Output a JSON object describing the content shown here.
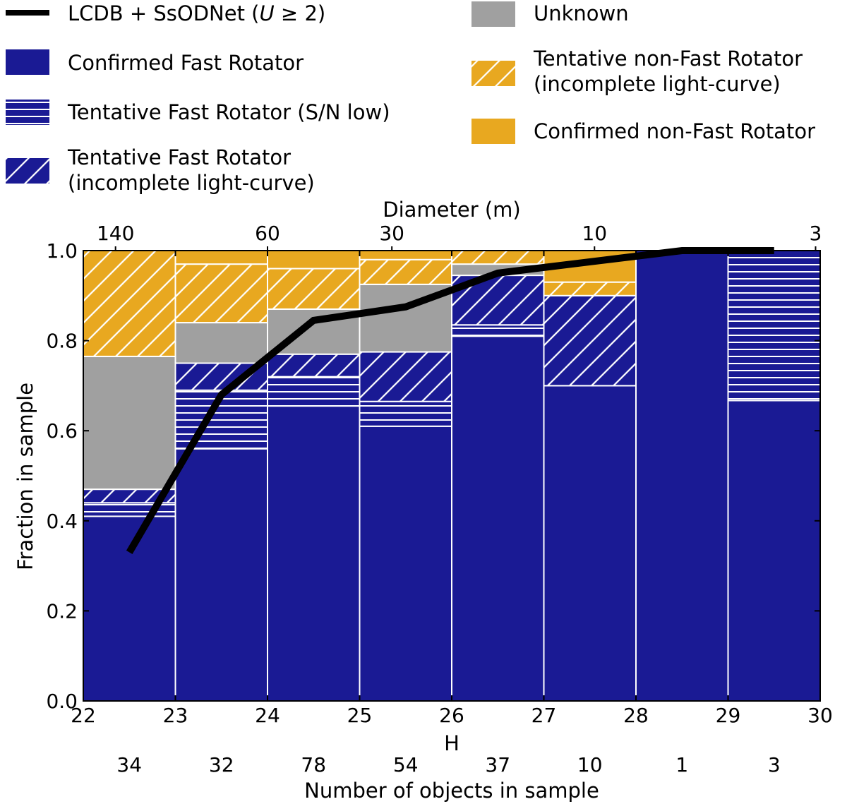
{
  "chart_data": {
    "type": "bar",
    "stacked": true,
    "x_bins": [
      {
        "h_min": 22,
        "h_max": 23,
        "count": "34"
      },
      {
        "h_min": 23,
        "h_max": 24,
        "count": "32"
      },
      {
        "h_min": 24,
        "h_max": 25,
        "count": "78"
      },
      {
        "h_min": 25,
        "h_max": 26,
        "count": "54"
      },
      {
        "h_min": 26,
        "h_max": 27,
        "count": "37"
      },
      {
        "h_min": 27,
        "h_max": 28,
        "count": "10"
      },
      {
        "h_min": 28,
        "h_max": 29,
        "count": "1"
      },
      {
        "h_min": 29,
        "h_max": 30,
        "count": "3"
      }
    ],
    "series": [
      {
        "name": "Confirmed Fast Rotator",
        "color": "#1a1a94",
        "pattern": "solid",
        "values": [
          0.41,
          0.56,
          0.655,
          0.61,
          0.81,
          0.7,
          1.0,
          0.667
        ]
      },
      {
        "name": "Tentative Fast Rotator (S/N low)",
        "color": "#1a1a94",
        "pattern": "horizontal",
        "values": [
          0.03,
          0.13,
          0.065,
          0.055,
          0.025,
          0.0,
          0.0,
          0.333
        ]
      },
      {
        "name": "Tentative Fast Rotator\n(incomplete light-curve)",
        "color": "#1a1a94",
        "pattern": "diagonal",
        "values": [
          0.03,
          0.06,
          0.05,
          0.11,
          0.11,
          0.2,
          0.0,
          0.0
        ]
      },
      {
        "name": "Unknown",
        "color": "#a0a0a0",
        "pattern": "solid",
        "values": [
          0.295,
          0.09,
          0.1,
          0.15,
          0.025,
          0.0,
          0.0,
          0.0
        ]
      },
      {
        "name": "Tentative non-Fast Rotator\n(incomplete light-curve)",
        "color": "#e8a820",
        "pattern": "diagonal",
        "values": [
          0.235,
          0.13,
          0.09,
          0.055,
          0.03,
          0.03,
          0.0,
          0.0
        ]
      },
      {
        "name": "Confirmed non-Fast Rotator",
        "color": "#e8a820",
        "pattern": "solid",
        "values": [
          0.0,
          0.03,
          0.04,
          0.02,
          0.0,
          0.07,
          0.0,
          0.0
        ]
      }
    ],
    "line": {
      "name_prefix": "LCDB + SsODNet (",
      "name_var": "U",
      "name_suffix": " ≥ 2)",
      "color": "#000000",
      "x": [
        22.5,
        23.5,
        24.5,
        25.5,
        26.5,
        27.5,
        28.5,
        29.5
      ],
      "y": [
        0.33,
        0.68,
        0.845,
        0.875,
        0.95,
        0.975,
        1.0,
        1.0
      ]
    },
    "xlim": [
      22,
      30
    ],
    "ylim": [
      0.0,
      1.0
    ],
    "xticks": [
      "22",
      "23",
      "24",
      "25",
      "26",
      "27",
      "28",
      "29",
      "30"
    ],
    "yticks": [
      "0.0",
      "0.2",
      "0.4",
      "0.6",
      "0.8",
      "1.0"
    ],
    "xlabel": "H",
    "ylabel": "Fraction in sample",
    "count_label": "Number of objects in sample",
    "top_axis": {
      "label": "Diameter (m)",
      "ticks": [
        {
          "text": "140",
          "h": 22.35
        },
        {
          "text": "60",
          "h": 24.0
        },
        {
          "text": "30",
          "h": 25.35
        },
        {
          "text": "10",
          "h": 27.55
        },
        {
          "text": "3",
          "h": 29.95
        }
      ]
    }
  }
}
